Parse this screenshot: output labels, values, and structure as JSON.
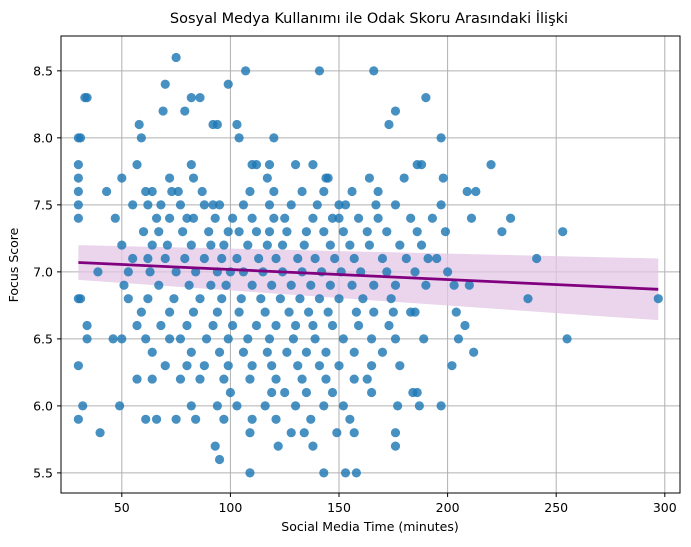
{
  "chart_data": {
    "type": "scatter",
    "title": "Sosyal Medya Kullanımı ile Odak Skoru Arasındaki İlişki",
    "xlabel": "Social Media Time (minutes)",
    "ylabel": "Focus Score",
    "xlim": [
      22,
      307
    ],
    "ylim": [
      5.35,
      8.76
    ],
    "xticks": [
      "50",
      "100",
      "150",
      "200",
      "250",
      "300"
    ],
    "yticks": [
      "5.5",
      "6.0",
      "6.5",
      "7.0",
      "7.5",
      "8.0",
      "8.5"
    ],
    "grid": true,
    "colors": {
      "points": "#1f77b4",
      "fit_line": "#800080",
      "band": "#e3c7e6"
    },
    "fit_line": {
      "x": [
        30,
        297
      ],
      "y": [
        7.07,
        6.87
      ]
    },
    "confidence_band": {
      "x": [
        30,
        297
      ],
      "upper": [
        7.2,
        7.1
      ],
      "lower": [
        6.94,
        6.64
      ]
    },
    "points": [
      [
        75,
        8.6
      ],
      [
        107,
        8.5
      ],
      [
        141,
        8.5
      ],
      [
        166,
        8.5
      ],
      [
        33,
        8.3
      ],
      [
        34,
        8.3
      ],
      [
        82,
        8.3
      ],
      [
        86,
        8.3
      ],
      [
        190,
        8.3
      ],
      [
        70,
        8.4
      ],
      [
        99,
        8.4
      ],
      [
        69,
        8.2
      ],
      [
        79,
        8.2
      ],
      [
        176,
        8.2
      ],
      [
        58,
        8.1
      ],
      [
        92,
        8.1
      ],
      [
        94,
        8.1
      ],
      [
        103,
        8.1
      ],
      [
        173,
        8.1
      ],
      [
        30,
        8.0
      ],
      [
        31,
        8.0
      ],
      [
        59,
        8.0
      ],
      [
        104,
        8.0
      ],
      [
        120,
        8.0
      ],
      [
        197,
        8.0
      ],
      [
        50,
        7.7
      ],
      [
        30,
        7.8
      ],
      [
        57,
        7.8
      ],
      [
        82,
        7.8
      ],
      [
        110,
        7.8
      ],
      [
        112,
        7.8
      ],
      [
        118,
        7.8
      ],
      [
        130,
        7.8
      ],
      [
        138,
        7.8
      ],
      [
        186,
        7.8
      ],
      [
        188,
        7.8
      ],
      [
        220,
        7.8
      ],
      [
        30,
        7.7
      ],
      [
        72,
        7.7
      ],
      [
        83,
        7.7
      ],
      [
        117,
        7.7
      ],
      [
        144,
        7.7
      ],
      [
        164,
        7.7
      ],
      [
        180,
        7.7
      ],
      [
        198,
        7.7
      ],
      [
        145,
        7.7
      ],
      [
        30,
        7.6
      ],
      [
        43,
        7.6
      ],
      [
        61,
        7.6
      ],
      [
        64,
        7.6
      ],
      [
        73,
        7.6
      ],
      [
        76,
        7.6
      ],
      [
        87,
        7.6
      ],
      [
        109,
        7.6
      ],
      [
        120,
        7.6
      ],
      [
        133,
        7.6
      ],
      [
        143,
        7.6
      ],
      [
        156,
        7.6
      ],
      [
        168,
        7.6
      ],
      [
        209,
        7.6
      ],
      [
        213,
        7.6
      ],
      [
        30,
        7.5
      ],
      [
        55,
        7.5
      ],
      [
        62,
        7.5
      ],
      [
        68,
        7.5
      ],
      [
        77,
        7.5
      ],
      [
        88,
        7.5
      ],
      [
        92,
        7.5
      ],
      [
        95,
        7.5
      ],
      [
        106,
        7.5
      ],
      [
        118,
        7.5
      ],
      [
        128,
        7.5
      ],
      [
        140,
        7.5
      ],
      [
        150,
        7.5
      ],
      [
        153,
        7.5
      ],
      [
        167,
        7.5
      ],
      [
        176,
        7.5
      ],
      [
        197,
        7.5
      ],
      [
        30,
        7.4
      ],
      [
        47,
        7.4
      ],
      [
        66,
        7.4
      ],
      [
        72,
        7.4
      ],
      [
        80,
        7.4
      ],
      [
        83,
        7.4
      ],
      [
        93,
        7.4
      ],
      [
        101,
        7.4
      ],
      [
        110,
        7.4
      ],
      [
        120,
        7.4
      ],
      [
        125,
        7.4
      ],
      [
        138,
        7.4
      ],
      [
        147,
        7.4
      ],
      [
        150,
        7.4
      ],
      [
        159,
        7.4
      ],
      [
        168,
        7.4
      ],
      [
        183,
        7.4
      ],
      [
        193,
        7.4
      ],
      [
        211,
        7.4
      ],
      [
        229,
        7.4
      ],
      [
        60,
        7.3
      ],
      [
        67,
        7.3
      ],
      [
        78,
        7.3
      ],
      [
        90,
        7.3
      ],
      [
        99,
        7.3
      ],
      [
        104,
        7.3
      ],
      [
        112,
        7.3
      ],
      [
        118,
        7.3
      ],
      [
        126,
        7.3
      ],
      [
        135,
        7.3
      ],
      [
        143,
        7.3
      ],
      [
        152,
        7.3
      ],
      [
        163,
        7.3
      ],
      [
        172,
        7.3
      ],
      [
        186,
        7.3
      ],
      [
        199,
        7.3
      ],
      [
        225,
        7.3
      ],
      [
        253,
        7.3
      ],
      [
        50,
        7.2
      ],
      [
        64,
        7.2
      ],
      [
        71,
        7.2
      ],
      [
        82,
        7.2
      ],
      [
        91,
        7.2
      ],
      [
        97,
        7.2
      ],
      [
        108,
        7.2
      ],
      [
        117,
        7.2
      ],
      [
        124,
        7.2
      ],
      [
        134,
        7.2
      ],
      [
        146,
        7.2
      ],
      [
        155,
        7.2
      ],
      [
        164,
        7.2
      ],
      [
        178,
        7.2
      ],
      [
        188,
        7.2
      ],
      [
        55,
        7.1
      ],
      [
        62,
        7.1
      ],
      [
        70,
        7.1
      ],
      [
        79,
        7.1
      ],
      [
        88,
        7.1
      ],
      [
        96,
        7.1
      ],
      [
        103,
        7.1
      ],
      [
        113,
        7.1
      ],
      [
        121,
        7.1
      ],
      [
        131,
        7.1
      ],
      [
        139,
        7.1
      ],
      [
        148,
        7.1
      ],
      [
        157,
        7.1
      ],
      [
        170,
        7.1
      ],
      [
        181,
        7.1
      ],
      [
        191,
        7.1
      ],
      [
        195,
        7.1
      ],
      [
        241,
        7.1
      ],
      [
        39,
        7.0
      ],
      [
        53,
        7.0
      ],
      [
        63,
        7.0
      ],
      [
        75,
        7.0
      ],
      [
        84,
        7.0
      ],
      [
        94,
        7.0
      ],
      [
        100,
        7.0
      ],
      [
        106,
        7.0
      ],
      [
        115,
        7.0
      ],
      [
        124,
        7.0
      ],
      [
        133,
        7.0
      ],
      [
        142,
        7.0
      ],
      [
        151,
        7.0
      ],
      [
        160,
        7.0
      ],
      [
        172,
        7.0
      ],
      [
        185,
        7.0
      ],
      [
        200,
        7.0
      ],
      [
        51,
        6.9
      ],
      [
        67,
        6.9
      ],
      [
        81,
        6.9
      ],
      [
        91,
        6.9
      ],
      [
        98,
        6.9
      ],
      [
        110,
        6.9
      ],
      [
        119,
        6.9
      ],
      [
        128,
        6.9
      ],
      [
        137,
        6.9
      ],
      [
        146,
        6.9
      ],
      [
        156,
        6.9
      ],
      [
        166,
        6.9
      ],
      [
        176,
        6.9
      ],
      [
        190,
        6.9
      ],
      [
        203,
        6.9
      ],
      [
        210,
        6.9
      ],
      [
        297,
        6.8
      ],
      [
        30,
        6.8
      ],
      [
        31,
        6.8
      ],
      [
        53,
        6.8
      ],
      [
        62,
        6.8
      ],
      [
        74,
        6.8
      ],
      [
        86,
        6.8
      ],
      [
        96,
        6.8
      ],
      [
        105,
        6.8
      ],
      [
        114,
        6.8
      ],
      [
        123,
        6.8
      ],
      [
        132,
        6.8
      ],
      [
        141,
        6.8
      ],
      [
        150,
        6.8
      ],
      [
        161,
        6.8
      ],
      [
        174,
        6.8
      ],
      [
        237,
        6.8
      ],
      [
        59,
        6.7
      ],
      [
        72,
        6.7
      ],
      [
        83,
        6.7
      ],
      [
        94,
        6.7
      ],
      [
        104,
        6.7
      ],
      [
        116,
        6.7
      ],
      [
        127,
        6.7
      ],
      [
        136,
        6.7
      ],
      [
        145,
        6.7
      ],
      [
        158,
        6.7
      ],
      [
        166,
        6.7
      ],
      [
        175,
        6.7
      ],
      [
        183,
        6.7
      ],
      [
        185,
        6.7
      ],
      [
        204,
        6.7
      ],
      [
        34,
        6.6
      ],
      [
        57,
        6.6
      ],
      [
        68,
        6.6
      ],
      [
        80,
        6.6
      ],
      [
        92,
        6.6
      ],
      [
        101,
        6.6
      ],
      [
        112,
        6.6
      ],
      [
        121,
        6.6
      ],
      [
        130,
        6.6
      ],
      [
        138,
        6.6
      ],
      [
        147,
        6.6
      ],
      [
        159,
        6.6
      ],
      [
        173,
        6.6
      ],
      [
        208,
        6.6
      ],
      [
        34,
        6.5
      ],
      [
        46,
        6.5
      ],
      [
        50,
        6.5
      ],
      [
        61,
        6.5
      ],
      [
        72,
        6.5
      ],
      [
        77,
        6.5
      ],
      [
        89,
        6.5
      ],
      [
        99,
        6.5
      ],
      [
        108,
        6.5
      ],
      [
        118,
        6.5
      ],
      [
        129,
        6.5
      ],
      [
        139,
        6.5
      ],
      [
        152,
        6.5
      ],
      [
        165,
        6.5
      ],
      [
        176,
        6.5
      ],
      [
        189,
        6.5
      ],
      [
        205,
        6.5
      ],
      [
        255,
        6.5
      ],
      [
        64,
        6.4
      ],
      [
        82,
        6.4
      ],
      [
        95,
        6.4
      ],
      [
        106,
        6.4
      ],
      [
        117,
        6.4
      ],
      [
        126,
        6.4
      ],
      [
        135,
        6.4
      ],
      [
        144,
        6.4
      ],
      [
        157,
        6.4
      ],
      [
        170,
        6.4
      ],
      [
        212,
        6.4
      ],
      [
        30,
        6.3
      ],
      [
        70,
        6.3
      ],
      [
        80,
        6.3
      ],
      [
        88,
        6.3
      ],
      [
        99,
        6.3
      ],
      [
        110,
        6.3
      ],
      [
        119,
        6.3
      ],
      [
        131,
        6.3
      ],
      [
        141,
        6.3
      ],
      [
        150,
        6.3
      ],
      [
        165,
        6.3
      ],
      [
        178,
        6.3
      ],
      [
        202,
        6.3
      ],
      [
        57,
        6.2
      ],
      [
        64,
        6.2
      ],
      [
        77,
        6.2
      ],
      [
        86,
        6.2
      ],
      [
        97,
        6.2
      ],
      [
        109,
        6.2
      ],
      [
        121,
        6.2
      ],
      [
        133,
        6.2
      ],
      [
        144,
        6.2
      ],
      [
        157,
        6.2
      ],
      [
        163,
        6.2
      ],
      [
        100,
        6.1
      ],
      [
        119,
        6.1
      ],
      [
        125,
        6.1
      ],
      [
        135,
        6.1
      ],
      [
        147,
        6.1
      ],
      [
        165,
        6.1
      ],
      [
        184,
        6.1
      ],
      [
        186,
        6.1
      ],
      [
        32,
        6.0
      ],
      [
        49,
        6.0
      ],
      [
        82,
        6.0
      ],
      [
        94,
        6.0
      ],
      [
        103,
        6.0
      ],
      [
        116,
        6.0
      ],
      [
        130,
        6.0
      ],
      [
        143,
        6.0
      ],
      [
        152,
        6.0
      ],
      [
        177,
        6.0
      ],
      [
        187,
        6.0
      ],
      [
        197,
        6.0
      ],
      [
        30,
        5.9
      ],
      [
        61,
        5.9
      ],
      [
        66,
        5.9
      ],
      [
        75,
        5.9
      ],
      [
        84,
        5.9
      ],
      [
        97,
        5.9
      ],
      [
        110,
        5.9
      ],
      [
        121,
        5.9
      ],
      [
        137,
        5.9
      ],
      [
        155,
        5.9
      ],
      [
        40,
        5.8
      ],
      [
        109,
        5.8
      ],
      [
        128,
        5.8
      ],
      [
        134,
        5.8
      ],
      [
        149,
        5.8
      ],
      [
        157,
        5.8
      ],
      [
        176,
        5.8
      ],
      [
        93,
        5.7
      ],
      [
        122,
        5.7
      ],
      [
        138,
        5.7
      ],
      [
        176,
        5.7
      ],
      [
        95,
        5.6
      ],
      [
        109,
        5.5
      ],
      [
        143,
        5.5
      ],
      [
        153,
        5.5
      ],
      [
        158,
        5.5
      ]
    ]
  }
}
